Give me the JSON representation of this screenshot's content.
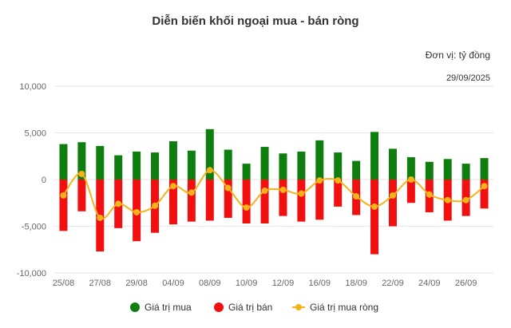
{
  "title": "Diễn biến khối ngoại mua - bán ròng",
  "unit_label": "Đơn vị: tỷ đồng",
  "date_label": "29/09/2025",
  "colors": {
    "buy": "#0e7f0e",
    "sell": "#f20f0f",
    "net": "#f7b21a",
    "grid": "#e6e6e6"
  },
  "chart_data": {
    "type": "bar",
    "ylim": [
      -10000,
      10000
    ],
    "yticks": [
      10000,
      5000,
      0,
      -5000,
      -10000
    ],
    "ytick_labels": [
      "10,000",
      "5,000",
      "0",
      "-5,000",
      "-10,000"
    ],
    "xtick_labels": [
      "25/08",
      "27/08",
      "29/08",
      "04/09",
      "08/09",
      "10/09",
      "12/09",
      "16/09",
      "18/09",
      "22/09",
      "24/09",
      "26/09"
    ],
    "xtick_indices": [
      0,
      2,
      4,
      6,
      8,
      10,
      12,
      14,
      16,
      18,
      20,
      22
    ],
    "series": [
      {
        "name": "Giá trị mua",
        "kind": "bar",
        "values": [
          3800,
          4000,
          3600,
          2600,
          3000,
          2900,
          4100,
          3100,
          5400,
          3200,
          1700,
          3500,
          2800,
          3000,
          4200,
          2900,
          2000,
          5100,
          3300,
          2400,
          1900,
          2200,
          1700,
          2300
        ]
      },
      {
        "name": "Giá trị bán",
        "kind": "bar",
        "values": [
          -5500,
          -3400,
          -7700,
          -5200,
          -6600,
          -5700,
          -4800,
          -4500,
          -4400,
          -4100,
          -4700,
          -4700,
          -3900,
          -4500,
          -4300,
          -2900,
          -3800,
          -8000,
          -5000,
          -2500,
          -3500,
          -4400,
          -3900,
          -3100
        ]
      },
      {
        "name": "Giá trị mua ròng",
        "kind": "line",
        "values": [
          -1700,
          600,
          -4100,
          -2600,
          -3500,
          -2800,
          -700,
          -1400,
          1000,
          -900,
          -3000,
          -1200,
          -1100,
          -1500,
          -100,
          -100,
          -1800,
          -2900,
          -1700,
          0,
          -1600,
          -2200,
          -2200,
          -700
        ]
      }
    ]
  }
}
